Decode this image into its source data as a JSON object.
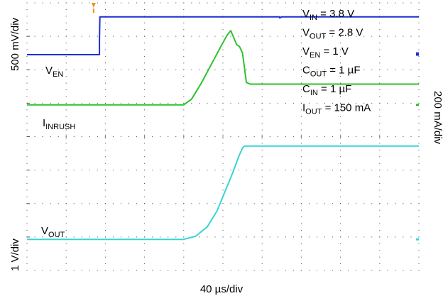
{
  "chart_data": {
    "type": "line",
    "x_axis_label": "40 µs/div",
    "y_axis_left_label": "500 mV/div",
    "y_axis_left_label_2": "1 V/div",
    "y_axis_right_label": "200 mA/div",
    "grid": "dotted 10x8 divisions",
    "x_div": 10,
    "y_div": 8,
    "x_units_per_div": 40,
    "x_unit": "µs",
    "ch_unit": "div",
    "conditions": [
      {
        "main": "V",
        "sub": "IN",
        "rest": " = 3.8 V"
      },
      {
        "main": "V",
        "sub": "OUT",
        "rest": " = 2.8 V"
      },
      {
        "main": "V",
        "sub": "EN",
        "rest": " = 1 V"
      },
      {
        "main": "C",
        "sub": "OUT",
        "rest": " = 1 µF"
      },
      {
        "main": "C",
        "sub": "IN",
        "rest": " = 1 µF"
      },
      {
        "main": "I",
        "sub": "OUT",
        "rest": " = 150 mA"
      }
    ],
    "series": [
      {
        "name_main": "V",
        "name_sub": "EN",
        "color": "#1c2fd6",
        "x": [
          0,
          1.85,
          1.85,
          1.86,
          6.35,
          6.45,
          6.45,
          6.5,
          10
        ],
        "y": [
          6.45,
          6.45,
          6.9,
          7.58,
          7.58,
          7.58,
          7.55,
          7.58,
          7.58
        ]
      },
      {
        "name_main": "I",
        "name_sub": "INRUSH",
        "color": "#2cc22c",
        "x": [
          0,
          4.0,
          4.2,
          4.45,
          4.7,
          4.95,
          5.1,
          5.2,
          5.28,
          5.35,
          5.42,
          5.5,
          5.55,
          5.6,
          5.7,
          6.0,
          10
        ],
        "y": [
          4.95,
          4.95,
          5.12,
          5.6,
          6.15,
          6.7,
          7.02,
          7.17,
          6.95,
          6.75,
          6.7,
          6.5,
          6.05,
          5.62,
          5.57,
          5.57,
          5.57
        ]
      },
      {
        "name_main": "V",
        "name_sub": "OUT",
        "color": "#38d4d4",
        "x": [
          0,
          4.0,
          4.3,
          4.6,
          4.85,
          5.05,
          5.25,
          5.4,
          5.5,
          5.55,
          6.5,
          10
        ],
        "y": [
          0.93,
          0.93,
          1.02,
          1.3,
          1.78,
          2.35,
          2.92,
          3.4,
          3.66,
          3.72,
          3.72,
          3.72
        ]
      }
    ],
    "markers": [
      {
        "name": "trigger-marker",
        "color": "#f09018",
        "x": 1.7
      },
      {
        "name": "ven-ref-marker",
        "color": "#1c2fd6",
        "y": 6.45
      },
      {
        "name": "inrush-ref-marker",
        "color": "#2cc22c",
        "y": 4.95
      },
      {
        "name": "vout-ref-marker",
        "color": "#38d4d4",
        "y": 0.93
      }
    ]
  }
}
